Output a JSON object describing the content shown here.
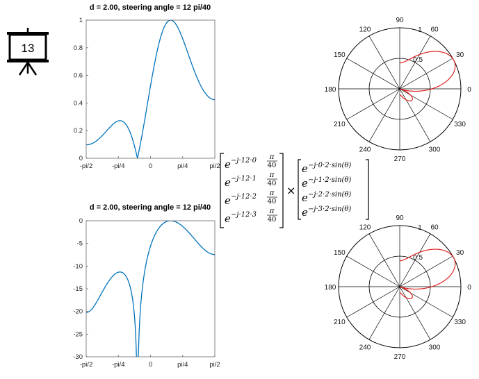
{
  "slide": {
    "number": "13",
    "icon": "presentation-board-icon"
  },
  "colors": {
    "line": "#0072BD",
    "polar": "#E02020",
    "red": "#E02020",
    "blue": "#1A9FD6"
  },
  "chart_data": [
    {
      "type": "line",
      "title": "d = 2.00, steering angle  = 12 pi/40",
      "xticklabels": [
        "-pi/2",
        "-pi/4",
        "0",
        "pi/4",
        "pi/2"
      ],
      "xlim": [
        -1.5708,
        1.5708
      ],
      "ylim": [
        0,
        1
      ],
      "yticks": [
        0,
        0.2,
        0.4,
        0.6,
        0.8,
        1
      ],
      "yticklabels": [
        "0",
        "0.2",
        "0.4",
        "0.6",
        "0.8",
        "1"
      ],
      "series": [
        {
          "values_from": "array_factor_normalized"
        }
      ]
    },
    {
      "type": "line",
      "title": "d = 2.00, steering angle  = 12 pi/40",
      "xticklabels": [
        "-pi/2",
        "-pi/4",
        "0",
        "pi/4",
        "pi/2"
      ],
      "xlim": [
        -1.5708,
        1.5708
      ],
      "ylim": [
        -30,
        0
      ],
      "yticks": [
        -30,
        -25,
        -20,
        -15,
        -10,
        -5,
        0
      ],
      "yticklabels": [
        "-30",
        "-25",
        "-20",
        "-15",
        "-10",
        "-5",
        "0"
      ],
      "series": [
        {
          "values_from": "array_factor_db"
        }
      ]
    },
    {
      "type": "polar",
      "rlim": [
        0,
        1
      ],
      "rticklabels": [
        "0.5",
        "1"
      ],
      "angleticklabels": [
        "0",
        "30",
        "60",
        "90",
        "120",
        "150",
        "180",
        "210",
        "240",
        "270",
        "300",
        "330"
      ]
    },
    {
      "type": "polar",
      "rlim": [
        0,
        1
      ],
      "rticklabels": [
        "0.5",
        "1"
      ],
      "angleticklabels": [
        "0",
        "30",
        "60",
        "90",
        "120",
        "150",
        "180",
        "210",
        "240",
        "270",
        "300",
        "330"
      ]
    }
  ],
  "equation": {
    "steering": [
      {
        "e": "e",
        "pre": "−j·",
        "a": "12",
        "dot": "·",
        "k": "0",
        "num": "π",
        "den": "40"
      },
      {
        "e": "e",
        "pre": "−j·",
        "a": "12",
        "dot": "·",
        "k": "1",
        "num": "π",
        "den": "40"
      },
      {
        "e": "e",
        "pre": "−j·",
        "a": "12",
        "dot": "·",
        "k": "2",
        "num": "π",
        "den": "40"
      },
      {
        "e": "e",
        "pre": "−j·",
        "a": "12",
        "dot": "·",
        "k": "3",
        "num": "π",
        "den": "40"
      }
    ],
    "times": "×",
    "array": [
      {
        "e": "e",
        "exp": "−j·0·2·sin(θ)"
      },
      {
        "e": "e",
        "exp": "−j·1·2·sin(θ)"
      },
      {
        "e": "e",
        "exp": "−j·2·2·sin(θ)"
      },
      {
        "e": "e",
        "exp": "−j·3·2·sin(θ)"
      }
    ]
  }
}
